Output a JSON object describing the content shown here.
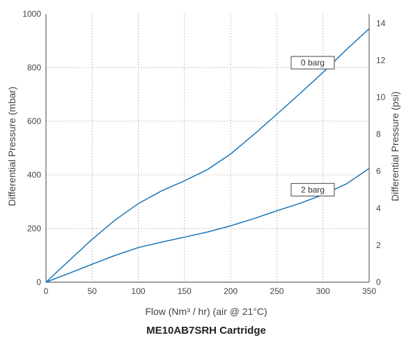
{
  "chart_data": {
    "type": "line",
    "title": "ME10AB7SRH Cartridge",
    "xlabel": "Flow (Nm³ / hr) (air @ 21°C)",
    "ylabel": "Differential Pressure (mbar)",
    "y2label": "Differential Pressure (psi)",
    "xlim": [
      0,
      350
    ],
    "ylim": [
      0,
      1000
    ],
    "y2lim": [
      0,
      14.5
    ],
    "xticks": [
      0,
      50,
      100,
      150,
      200,
      250,
      300,
      350
    ],
    "yticks": [
      0,
      200,
      400,
      600,
      800,
      1000
    ],
    "y2ticks": [
      0,
      2,
      4,
      6,
      8,
      10,
      12,
      14
    ],
    "grid": true,
    "line_color": "#1a75b8",
    "series": [
      {
        "name": "0 barg",
        "x": [
          0,
          25,
          50,
          75,
          100,
          125,
          150,
          175,
          200,
          225,
          250,
          275,
          300,
          325,
          350
        ],
        "y": [
          0,
          80,
          160,
          232,
          293,
          340,
          378,
          420,
          478,
          550,
          626,
          703,
          782,
          866,
          945
        ]
      },
      {
        "name": "2 barg",
        "x": [
          0,
          25,
          50,
          75,
          100,
          125,
          150,
          175,
          200,
          225,
          250,
          275,
          300,
          325,
          350
        ],
        "y": [
          0,
          33,
          67,
          100,
          129,
          149,
          168,
          187,
          210,
          237,
          266,
          294,
          326,
          366,
          424
        ]
      }
    ]
  }
}
